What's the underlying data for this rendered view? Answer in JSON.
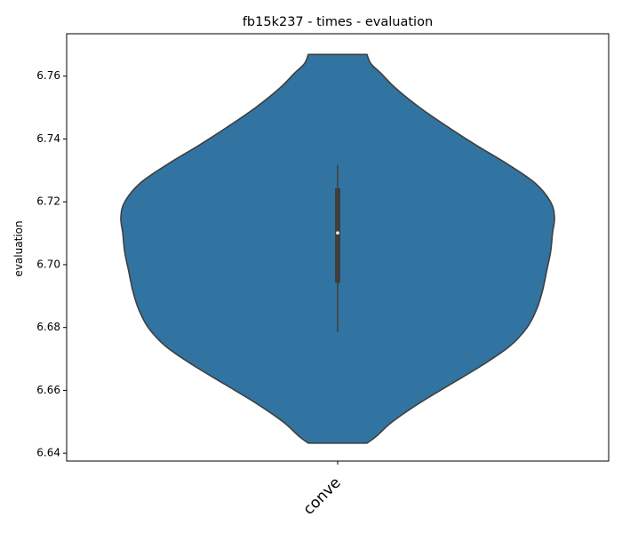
{
  "chart_data": {
    "type": "violin",
    "title": "fb15k237 - times - evaluation",
    "xlabel": "",
    "ylabel": "evaluation",
    "categories": [
      "conve"
    ],
    "ylim": [
      6.6375,
      6.7735
    ],
    "yticks": [
      "6.64",
      "6.66",
      "6.68",
      "6.70",
      "6.72",
      "6.74",
      "6.76"
    ],
    "violin": {
      "category": "conve",
      "min": 6.6432,
      "max": 6.7669,
      "density": [
        [
          6.6432,
          0.15
        ],
        [
          6.6455,
          0.2
        ],
        [
          6.65,
          0.28
        ],
        [
          6.656,
          0.42
        ],
        [
          6.662,
          0.58
        ],
        [
          6.668,
          0.74
        ],
        [
          6.674,
          0.88
        ],
        [
          6.68,
          0.97
        ],
        [
          6.686,
          1.02
        ],
        [
          6.692,
          1.05
        ],
        [
          6.698,
          1.07
        ],
        [
          6.704,
          1.09
        ],
        [
          6.71,
          1.1
        ],
        [
          6.715,
          1.11
        ],
        [
          6.72,
          1.09
        ],
        [
          6.726,
          1.01
        ],
        [
          6.732,
          0.87
        ],
        [
          6.738,
          0.71
        ],
        [
          6.744,
          0.56
        ],
        [
          6.75,
          0.42
        ],
        [
          6.756,
          0.3
        ],
        [
          6.761,
          0.22
        ],
        [
          6.764,
          0.17
        ],
        [
          6.7669,
          0.15
        ]
      ],
      "box": {
        "q1": 6.6942,
        "median": 6.7101,
        "q3": 6.7243,
        "whisker_low": 6.6786,
        "whisker_high": 6.7317
      },
      "fill_color": "#3274a1",
      "edge_color": "#3f3f3f"
    }
  }
}
